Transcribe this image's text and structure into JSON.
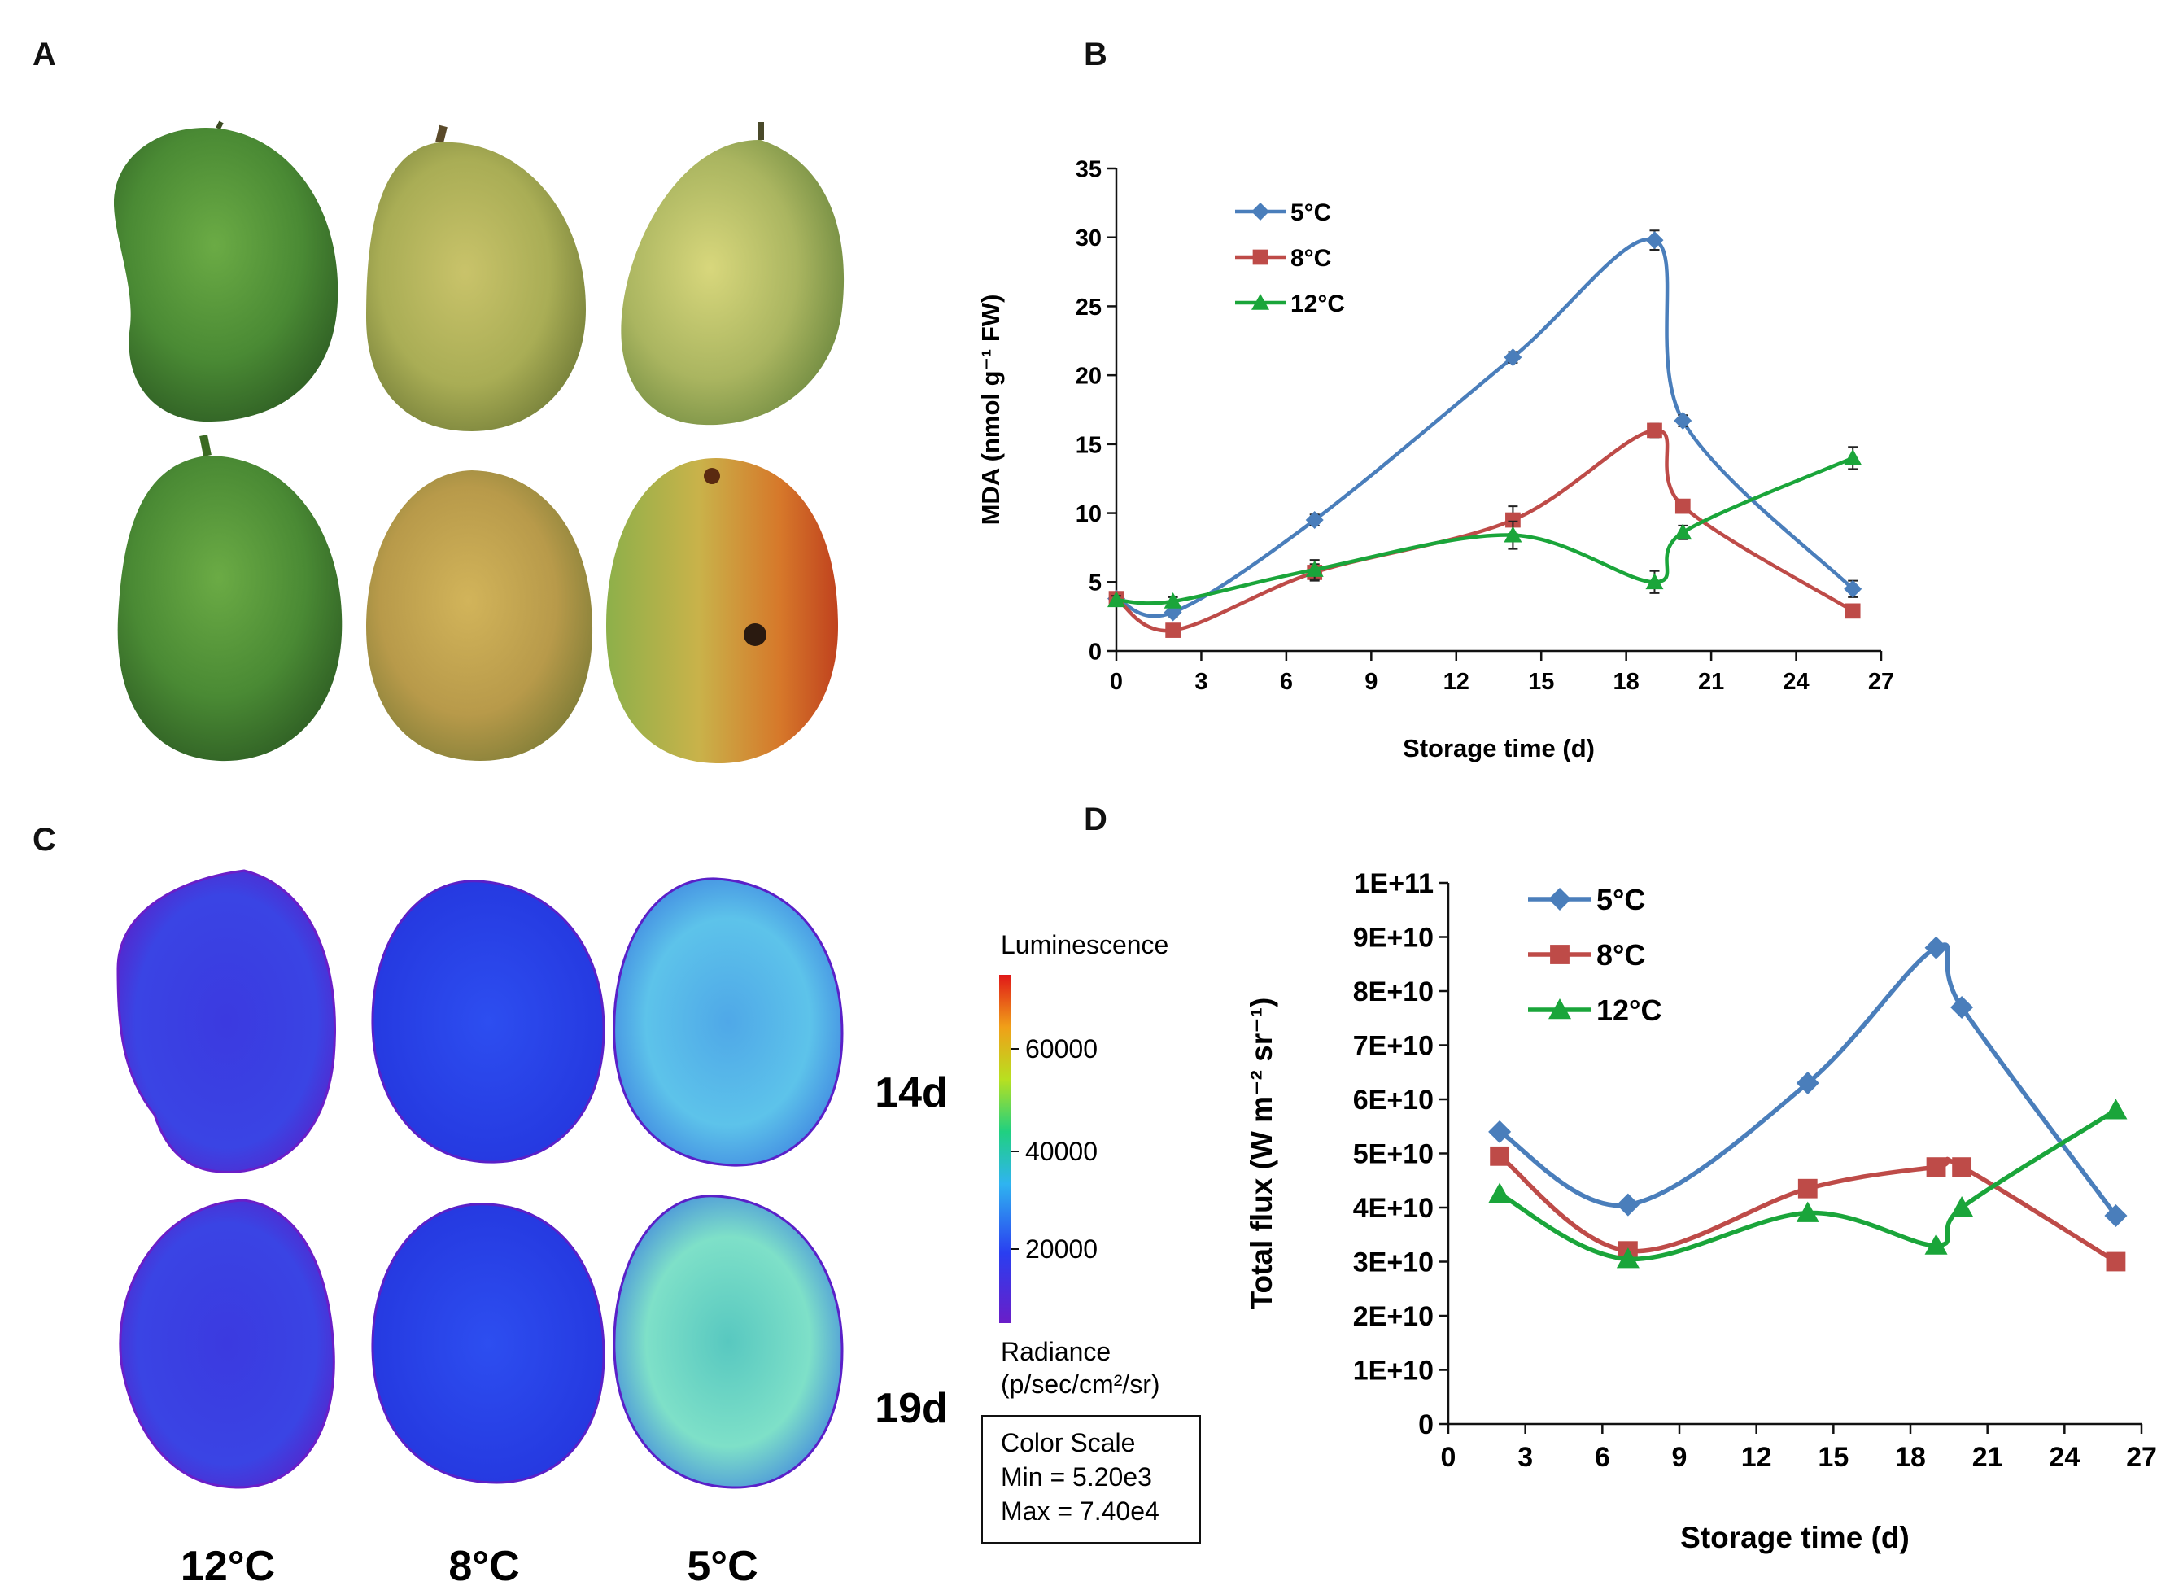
{
  "panels": {
    "a": "A",
    "b": "B",
    "c": "C",
    "d": "D"
  },
  "panel_c": {
    "temps": [
      "12°C",
      "8°C",
      "5°C"
    ],
    "days": [
      "14d",
      "19d"
    ],
    "colorbar": {
      "title": "Luminescence",
      "ticks": [
        "60000",
        "40000",
        "20000"
      ],
      "unit_line1": "Radiance",
      "unit_line2": "(p/sec/cm²/sr)",
      "scale_title": "Color Scale",
      "min": "Min = 5.20e3",
      "max": "Max = 7.40e4"
    }
  },
  "chart_data": [
    {
      "id": "B",
      "type": "line",
      "title": "",
      "xlabel": "Storage time (d)",
      "ylabel": "MDA (nmol g⁻¹ FW)",
      "x": [
        0,
        2,
        7,
        14,
        19,
        20,
        26
      ],
      "xlim": [
        0,
        27
      ],
      "ylim": [
        0,
        35
      ],
      "xticks": [
        0,
        3,
        6,
        9,
        12,
        15,
        18,
        21,
        24,
        27
      ],
      "yticks": [
        0,
        5,
        10,
        15,
        20,
        25,
        30,
        35
      ],
      "yticklabels": [
        "0",
        "5",
        "10",
        "15",
        "20",
        "25",
        "30",
        "35"
      ],
      "legend": "top-left",
      "series": [
        {
          "name": "5°C",
          "color": "#4a7ebb",
          "marker": "diamond",
          "values": [
            3.8,
            2.8,
            9.5,
            21.3,
            29.8,
            16.7,
            4.5
          ],
          "errors": [
            0.3,
            0.3,
            0.4,
            0.4,
            0.7,
            0.4,
            0.6
          ]
        },
        {
          "name": "8°C",
          "color": "#be4b48",
          "marker": "square",
          "values": [
            3.8,
            1.5,
            5.7,
            9.5,
            16.0,
            10.5,
            2.9
          ],
          "errors": [
            0.3,
            0.3,
            0.6,
            1.0,
            0.5,
            0.4,
            0.3
          ]
        },
        {
          "name": "12°C",
          "color": "#1aa53a",
          "marker": "triangle",
          "values": [
            3.7,
            3.6,
            5.9,
            8.4,
            5.0,
            8.6,
            14.0
          ],
          "errors": [
            0.3,
            0.3,
            0.7,
            1.0,
            0.8,
            0.5,
            0.8
          ]
        }
      ]
    },
    {
      "id": "D",
      "type": "line",
      "title": "",
      "xlabel": "Storage time (d)",
      "ylabel": "Total flux (W m⁻² sr⁻¹)",
      "x": [
        2,
        7,
        14,
        19,
        20,
        26
      ],
      "xlim": [
        0,
        27
      ],
      "ylim": [
        0,
        100000000000
      ],
      "xticks": [
        0,
        3,
        6,
        9,
        12,
        15,
        18,
        21,
        24,
        27
      ],
      "yticks": [
        0,
        10000000000,
        20000000000,
        30000000000,
        40000000000,
        50000000000,
        60000000000,
        70000000000,
        80000000000,
        90000000000,
        100000000000
      ],
      "yticklabels": [
        "0",
        "1E+10",
        "2E+10",
        "3E+10",
        "4E+10",
        "5E+10",
        "6E+10",
        "7E+10",
        "8E+10",
        "9E+10",
        "1E+11"
      ],
      "legend": "top-left",
      "series": [
        {
          "name": "5°C",
          "color": "#4a7ebb",
          "marker": "diamond",
          "values": [
            54000000000,
            40500000000,
            63000000000,
            88000000000,
            77000000000,
            38500000000
          ]
        },
        {
          "name": "8°C",
          "color": "#be4b48",
          "marker": "square",
          "values": [
            49500000000,
            32000000000,
            43500000000,
            47500000000,
            47500000000,
            30000000000
          ]
        },
        {
          "name": "12°C",
          "color": "#1aa53a",
          "marker": "triangle",
          "values": [
            42500000000,
            30500000000,
            39000000000,
            33000000000,
            40000000000,
            58000000000
          ]
        }
      ]
    }
  ]
}
